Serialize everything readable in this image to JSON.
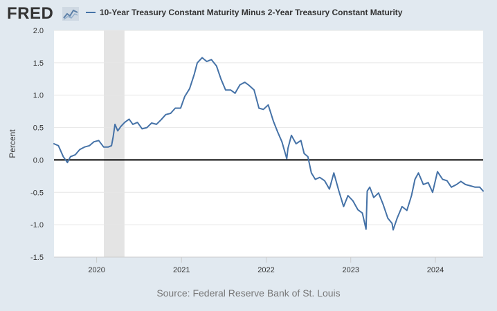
{
  "brand": {
    "logo_text": "FRED",
    "logo_icon": "trend-line-icon"
  },
  "legend": {
    "series_label": "10-Year Treasury Constant Maturity Minus 2-Year Treasury Constant Maturity"
  },
  "source_text": "Source: Federal Reserve Bank of St. Louis",
  "colors": {
    "page_bg": "#e1e9f0",
    "plot_bg": "#ffffff",
    "series": "#4572a7",
    "recession": "#e4e4e4",
    "zero_line": "#000000",
    "grid": "#e6e6e6"
  },
  "chart_data": {
    "type": "line",
    "title": "",
    "xlabel": "",
    "ylabel": "Percent",
    "xlim": [
      "2019-07-01",
      "2024-07-25"
    ],
    "ylim": [
      -1.5,
      2.0
    ],
    "yticks": [
      -1.5,
      -1.0,
      -0.5,
      0.0,
      0.5,
      1.0,
      1.5,
      2.0
    ],
    "ytick_labels": [
      "-1.5",
      "-1.0",
      "-0.5",
      "0.0",
      "0.5",
      "1.0",
      "1.5",
      "2.0"
    ],
    "xticks": [
      "2020-01-01",
      "2021-01-01",
      "2022-01-01",
      "2023-01-01",
      "2024-01-01"
    ],
    "xtick_labels": [
      "2020",
      "2021",
      "2022",
      "2023",
      "2024"
    ],
    "grid": true,
    "reference_line": 0.0,
    "recession_shading": [
      {
        "start": "2020-02-01",
        "end": "2020-04-30"
      }
    ],
    "legend_position": "top",
    "series": [
      {
        "x": [
          "2019-07-01",
          "2019-07-20",
          "2019-08-10",
          "2019-08-28",
          "2019-09-10",
          "2019-10-01",
          "2019-10-20",
          "2019-11-10",
          "2019-12-01",
          "2019-12-20",
          "2020-01-10",
          "2020-01-31",
          "2020-02-20",
          "2020-03-05",
          "2020-03-12",
          "2020-03-20",
          "2020-04-01",
          "2020-04-15",
          "2020-05-01",
          "2020-05-20",
          "2020-06-05",
          "2020-06-25",
          "2020-07-15",
          "2020-08-05",
          "2020-08-25",
          "2020-09-15",
          "2020-10-05",
          "2020-10-25",
          "2020-11-15",
          "2020-12-05",
          "2020-12-28",
          "2021-01-15",
          "2021-02-05",
          "2021-02-25",
          "2021-03-10",
          "2021-03-31",
          "2021-04-20",
          "2021-05-10",
          "2021-06-01",
          "2021-06-20",
          "2021-07-10",
          "2021-08-01",
          "2021-08-20",
          "2021-09-10",
          "2021-10-01",
          "2021-10-20",
          "2021-11-10",
          "2021-12-01",
          "2021-12-20",
          "2022-01-10",
          "2022-02-01",
          "2022-02-20",
          "2022-03-10",
          "2022-03-31",
          "2022-04-05",
          "2022-04-20",
          "2022-05-10",
          "2022-05-31",
          "2022-06-14",
          "2022-06-30",
          "2022-07-15",
          "2022-08-01",
          "2022-08-20",
          "2022-09-10",
          "2022-10-01",
          "2022-10-20",
          "2022-11-10",
          "2022-12-01",
          "2022-12-20",
          "2023-01-10",
          "2023-02-01",
          "2023-02-20",
          "2023-03-08",
          "2023-03-13",
          "2023-03-24",
          "2023-04-10",
          "2023-05-01",
          "2023-05-20",
          "2023-06-10",
          "2023-06-28",
          "2023-07-03",
          "2023-07-20",
          "2023-08-10",
          "2023-08-31",
          "2023-09-20",
          "2023-10-05",
          "2023-10-20",
          "2023-11-10",
          "2023-12-01",
          "2023-12-20",
          "2024-01-10",
          "2024-02-01",
          "2024-02-20",
          "2024-03-10",
          "2024-04-01",
          "2024-04-20",
          "2024-05-10",
          "2024-05-31",
          "2024-06-20",
          "2024-07-10",
          "2024-07-25"
        ],
        "y": [
          0.25,
          0.22,
          0.05,
          -0.04,
          0.05,
          0.08,
          0.16,
          0.2,
          0.22,
          0.28,
          0.3,
          0.2,
          0.2,
          0.22,
          0.35,
          0.55,
          0.45,
          0.52,
          0.58,
          0.63,
          0.55,
          0.58,
          0.48,
          0.5,
          0.57,
          0.55,
          0.62,
          0.7,
          0.72,
          0.8,
          0.8,
          0.98,
          1.1,
          1.32,
          1.5,
          1.58,
          1.52,
          1.55,
          1.45,
          1.25,
          1.08,
          1.08,
          1.03,
          1.16,
          1.2,
          1.15,
          1.08,
          0.8,
          0.78,
          0.85,
          0.6,
          0.43,
          0.28,
          0.02,
          0.18,
          0.38,
          0.25,
          0.3,
          0.1,
          0.05,
          -0.2,
          -0.3,
          -0.27,
          -0.32,
          -0.45,
          -0.2,
          -0.47,
          -0.72,
          -0.55,
          -0.63,
          -0.77,
          -0.82,
          -1.07,
          -0.48,
          -0.42,
          -0.58,
          -0.51,
          -0.68,
          -0.9,
          -0.98,
          -1.08,
          -0.9,
          -0.72,
          -0.78,
          -0.55,
          -0.3,
          -0.2,
          -0.38,
          -0.35,
          -0.5,
          -0.18,
          -0.3,
          -0.32,
          -0.42,
          -0.38,
          -0.33,
          -0.38,
          -0.4,
          -0.42,
          -0.42,
          -0.48
        ]
      }
    ]
  }
}
